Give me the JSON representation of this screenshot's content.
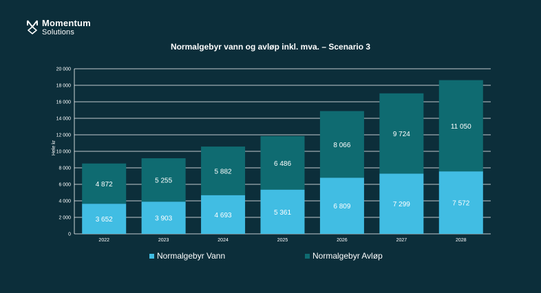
{
  "brand": {
    "name": "Momentum",
    "sub": "Solutions"
  },
  "chart_data": {
    "type": "bar",
    "stacked": true,
    "title": "Normalgebyr vann og avløp inkl. mva. – Scenario 3",
    "ylabel": "Hele kr",
    "xlabel": "",
    "categories": [
      "2022",
      "2023",
      "2024",
      "2025",
      "2026",
      "2027",
      "2028"
    ],
    "ylim": [
      0,
      20000
    ],
    "yticks": [
      0,
      2000,
      4000,
      6000,
      8000,
      10000,
      12000,
      14000,
      16000,
      18000,
      20000
    ],
    "ytick_labels": [
      "0",
      "2 000",
      "4 000",
      "6 000",
      "8 000",
      "10 000",
      "12 000",
      "14 000",
      "16 000",
      "18 000",
      "20 000"
    ],
    "grid": true,
    "legend_position": "bottom",
    "series": [
      {
        "name": "Normalgebyr Vann",
        "color": "#41bde3",
        "values": [
          3652,
          3903,
          4693,
          5361,
          6809,
          7299,
          7572
        ],
        "labels": [
          "3 652",
          "3 903",
          "4 693",
          "5 361",
          "6 809",
          "7 299",
          "7 572"
        ]
      },
      {
        "name": "Normalgebyr Avløp",
        "color": "#0f6b71",
        "values": [
          4872,
          5255,
          5882,
          6486,
          8066,
          9724,
          11050
        ],
        "labels": [
          "4 872",
          "5 255",
          "5 882",
          "6 486",
          "8 066",
          "9 724",
          "11 050"
        ]
      }
    ]
  }
}
